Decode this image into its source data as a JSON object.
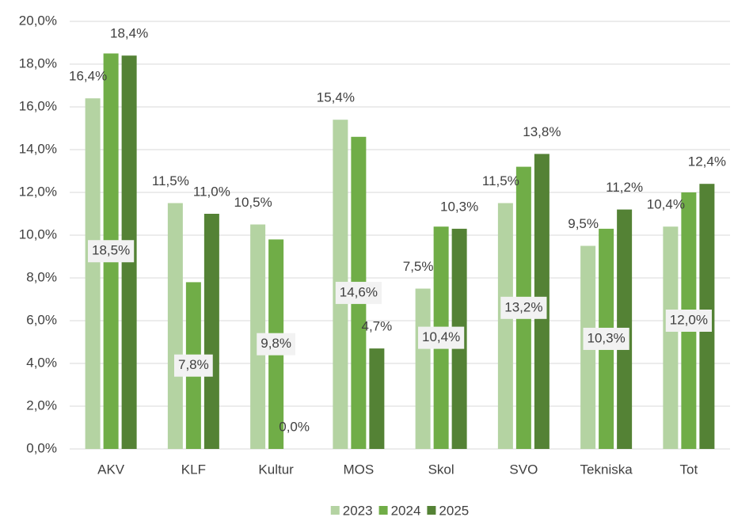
{
  "chart_data": {
    "type": "bar",
    "categories": [
      "AKV",
      "KLF",
      "Kultur",
      "MOS",
      "Skol",
      "SVO",
      "Tekniska",
      "Tot"
    ],
    "series": [
      {
        "name": "2023",
        "color": "#b4d3a2",
        "values": [
          16.4,
          11.5,
          10.5,
          15.4,
          7.5,
          11.5,
          9.5,
          10.4
        ],
        "value_labels": [
          "16,4%",
          "11,5%",
          "10,5%",
          "15,4%",
          "7,5%",
          "11,5%",
          "9,5%",
          "10,4%"
        ]
      },
      {
        "name": "2024",
        "color": "#70ad47",
        "values": [
          18.5,
          7.8,
          9.8,
          14.6,
          10.4,
          13.2,
          10.3,
          12.0
        ],
        "value_labels": [
          "18,5%",
          "7,8%",
          "9,8%",
          "14,6%",
          "10,4%",
          "13,2%",
          "10,3%",
          "12,0%"
        ]
      },
      {
        "name": "2025",
        "color": "#548235",
        "values": [
          18.4,
          11.0,
          0.0,
          4.7,
          10.3,
          13.8,
          11.2,
          12.4
        ],
        "value_labels": [
          "18,4%",
          "11,0%",
          "0,0%",
          "4,7%",
          "10,3%",
          "13,8%",
          "11,2%",
          "12,4%"
        ]
      }
    ],
    "ylim": [
      0,
      20
    ],
    "yticks": [
      {
        "value": 0,
        "label": "0,0%"
      },
      {
        "value": 2,
        "label": "2,0%"
      },
      {
        "value": 4,
        "label": "4,0%"
      },
      {
        "value": 6,
        "label": "6,0%"
      },
      {
        "value": 8,
        "label": "8,0%"
      },
      {
        "value": 10,
        "label": "10,0%"
      },
      {
        "value": 12,
        "label": "12,0%"
      },
      {
        "value": 14,
        "label": "14,0%"
      },
      {
        "value": 16,
        "label": "16,0%"
      },
      {
        "value": 18,
        "label": "18,0%"
      },
      {
        "value": 20,
        "label": "20,0%"
      }
    ],
    "grid": true,
    "legend": "bottom"
  }
}
